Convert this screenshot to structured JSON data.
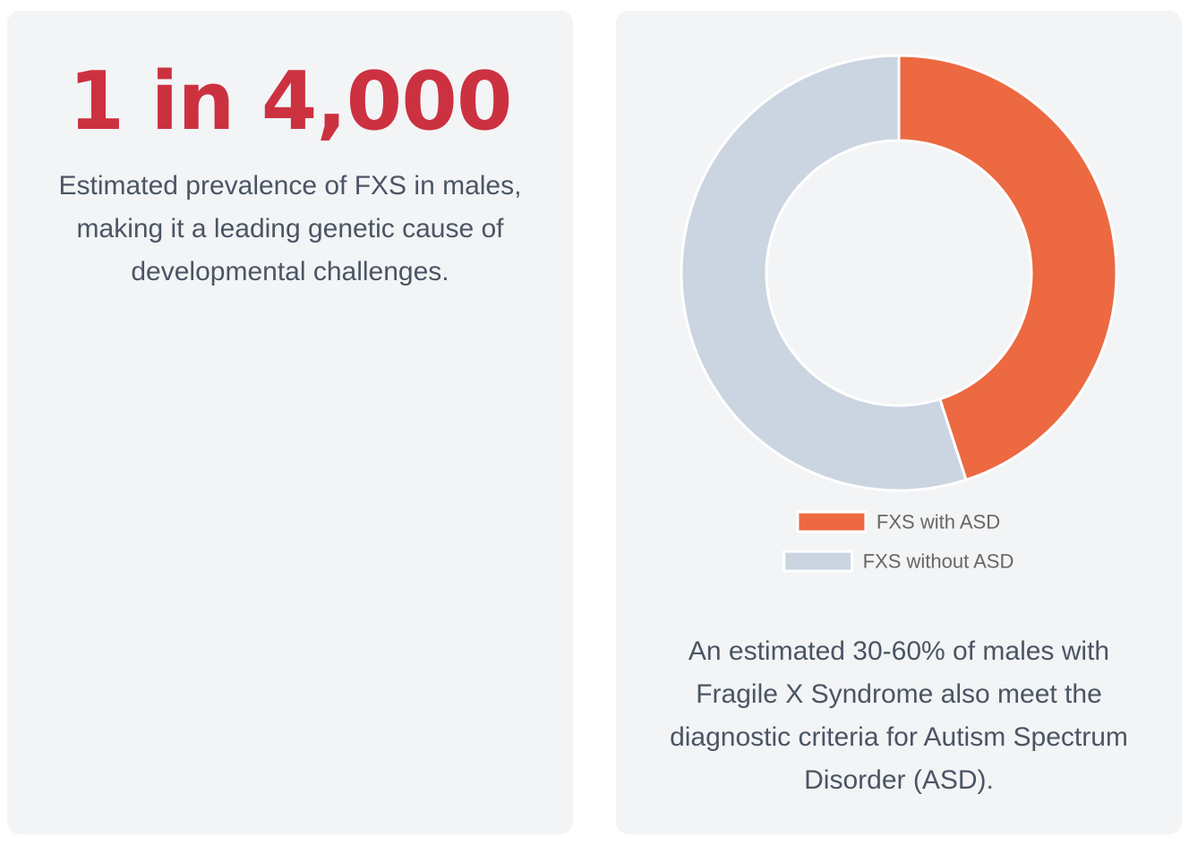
{
  "left_card": {
    "stat": "1 in 4,000",
    "description": "Estimated prevalence of FXS in males, making it a leading genetic cause of developmental challenges."
  },
  "right_card": {
    "description": "An estimated 30-60% of males with Fragile X Syndrome also meet the diagnostic criteria for Autism Spectrum Disorder (ASD)."
  },
  "colors": {
    "stat_red": "#cc3140",
    "fxs_with_asd": "#ec6941",
    "fxs_without_asd": "#cbd5e1",
    "text": "#4b5563",
    "card_bg": "#f2f4f6"
  },
  "chart_data": {
    "type": "pie",
    "variant": "doughnut",
    "categories": [
      "FXS with ASD",
      "FXS without ASD"
    ],
    "values": [
      45,
      55
    ],
    "colors": [
      "#ec6941",
      "#cbd5e1"
    ],
    "legend": {
      "position": "bottom"
    },
    "title": ""
  }
}
